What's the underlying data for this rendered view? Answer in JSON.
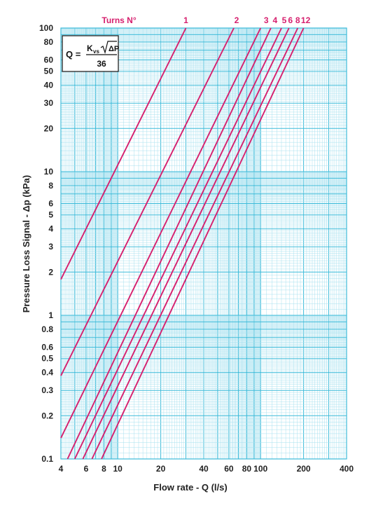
{
  "colors": {
    "grid_major": "#3dbbd9",
    "grid_minor": "#a8e1ef",
    "curve": "#d6206e",
    "text": "#222222",
    "background": "#ffffff"
  },
  "formula": {
    "lhs": "Q =",
    "k_symbol": "K",
    "k_subscript": "vs",
    "radicand": "ΔP",
    "denominator": "36"
  },
  "chart_data": {
    "type": "line",
    "xlabel": "Flow rate - Q (l/s)",
    "ylabel": "Pressure Loss Signal  - Δp (kPa)",
    "xscale": "log",
    "yscale": "log",
    "xlim": [
      4,
      400
    ],
    "ylim": [
      0.1,
      100
    ],
    "grid": true,
    "legend_title": "Turns N°",
    "x_ticks": [
      {
        "value": 4,
        "label": "4"
      },
      {
        "value": 6,
        "label": "6"
      },
      {
        "value": 8,
        "label": "8"
      },
      {
        "value": 10,
        "label": "10"
      },
      {
        "value": 20,
        "label": "20"
      },
      {
        "value": 40,
        "label": "40"
      },
      {
        "value": 60,
        "label": "60"
      },
      {
        "value": 80,
        "label": "80"
      },
      {
        "value": 100,
        "label": "100"
      },
      {
        "value": 200,
        "label": "200"
      },
      {
        "value": 400,
        "label": "400"
      }
    ],
    "y_ticks": [
      {
        "value": 0.1,
        "label": "0.1"
      },
      {
        "value": 0.2,
        "label": "0.2"
      },
      {
        "value": 0.3,
        "label": "0.3"
      },
      {
        "value": 0.4,
        "label": "0.4"
      },
      {
        "value": 0.5,
        "label": "0.5"
      },
      {
        "value": 0.6,
        "label": "0.6"
      },
      {
        "value": 0.8,
        "label": "0.8"
      },
      {
        "value": 1,
        "label": "1"
      },
      {
        "value": 2,
        "label": "2"
      },
      {
        "value": 3,
        "label": "3"
      },
      {
        "value": 4,
        "label": "4"
      },
      {
        "value": 5,
        "label": "5"
      },
      {
        "value": 6,
        "label": "6"
      },
      {
        "value": 8,
        "label": "8"
      },
      {
        "value": 10,
        "label": "10"
      },
      {
        "value": 20,
        "label": "20"
      },
      {
        "value": 30,
        "label": "30"
      },
      {
        "value": 40,
        "label": "40"
      },
      {
        "value": 50,
        "label": "50"
      },
      {
        "value": 60,
        "label": "60"
      },
      {
        "value": 80,
        "label": "80"
      },
      {
        "value": 100,
        "label": "100"
      }
    ],
    "series": [
      {
        "name": "1",
        "x": [
          4,
          30
        ],
        "y": [
          1.78,
          100
        ]
      },
      {
        "name": "2",
        "x": [
          4,
          65
        ],
        "y": [
          0.38,
          100
        ]
      },
      {
        "name": "3",
        "x": [
          4,
          100
        ],
        "y": [
          0.14,
          100
        ]
      },
      {
        "name": "4",
        "x": [
          4.45,
          118
        ],
        "y": [
          0.1,
          100
        ]
      },
      {
        "name": "5",
        "x": [
          5.0,
          140
        ],
        "y": [
          0.1,
          100
        ]
      },
      {
        "name": "6",
        "x": [
          5.7,
          158
        ],
        "y": [
          0.1,
          100
        ]
      },
      {
        "name": "8",
        "x": [
          6.6,
          182
        ],
        "y": [
          0.1,
          100
        ]
      },
      {
        "name": "12",
        "x": [
          7.7,
          200
        ],
        "y": [
          0.1,
          100
        ]
      }
    ]
  }
}
